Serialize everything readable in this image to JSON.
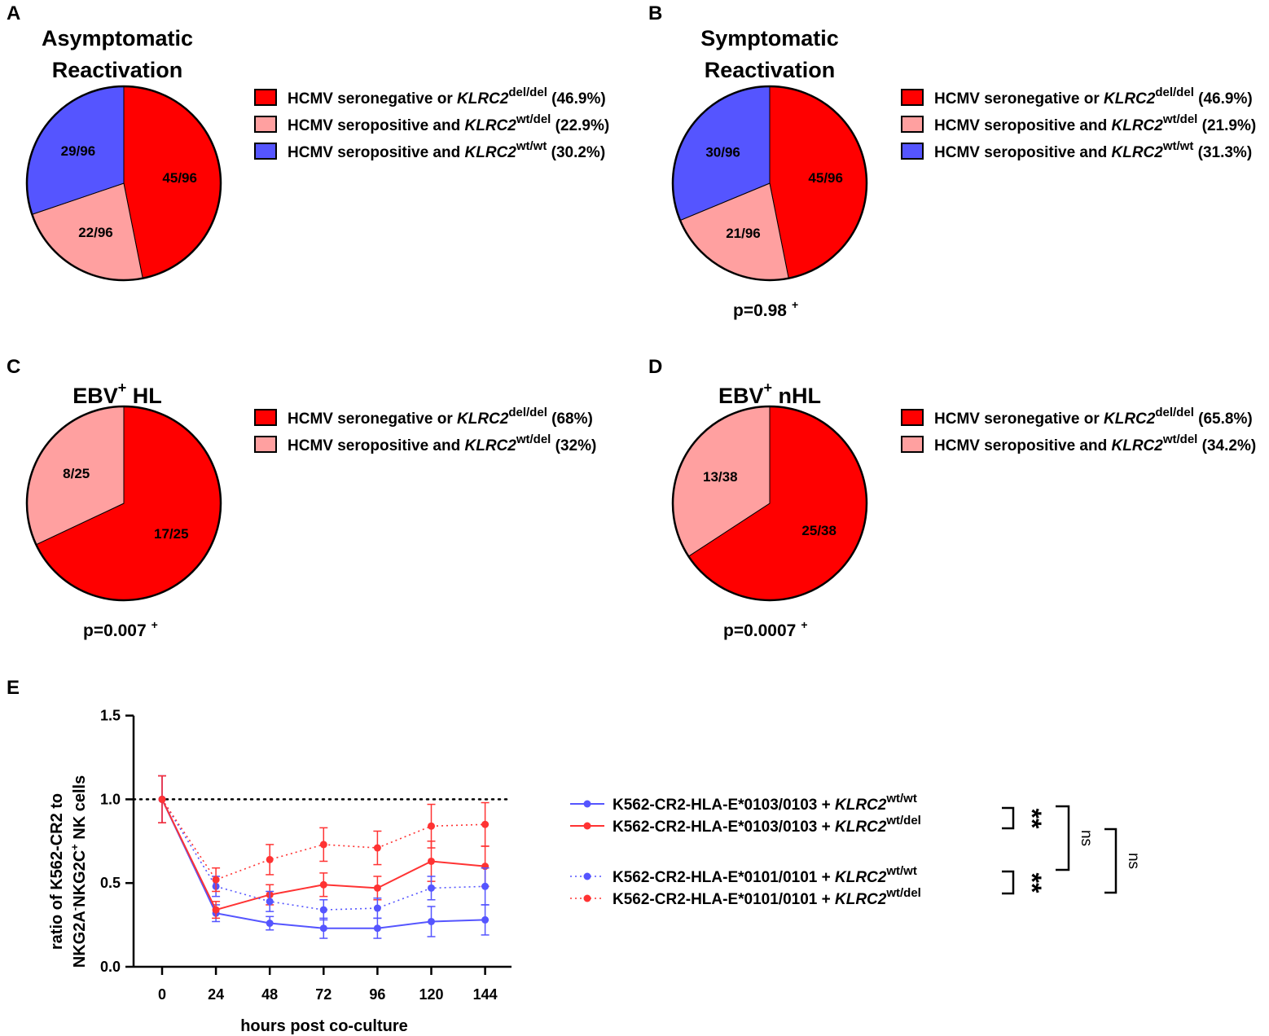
{
  "chart_data": [
    {
      "type": "pie",
      "panel_label": "A",
      "title": [
        "Asymptomatic",
        "Reactivation"
      ],
      "slices": [
        {
          "label": "45/96",
          "value": 45,
          "color": "#ff0000"
        },
        {
          "label": "22/96",
          "value": 22,
          "color": "#ffa0a0"
        },
        {
          "label": "29/96",
          "value": 29,
          "color": "#5555ff"
        }
      ],
      "legend": [
        {
          "pre": "HCMV seronegative  or ",
          "gene": "KLRC2",
          "sup": "del/del",
          "post": " (46.9%)",
          "color": "#ff0000"
        },
        {
          "pre": "HCMV seropositive and ",
          "gene": "KLRC2",
          "sup": "wt/del",
          "post": " (22.9%)",
          "color": "#ffa0a0"
        },
        {
          "pre": "HCMV seropositive and ",
          "gene": "KLRC2",
          "sup": "wt/wt",
          "post": " (30.2%)",
          "color": "#5555ff"
        }
      ],
      "p_value": "",
      "p_sup": ""
    },
    {
      "type": "pie",
      "panel_label": "B",
      "title": [
        "Symptomatic",
        "Reactivation"
      ],
      "slices": [
        {
          "label": "45/96",
          "value": 45,
          "color": "#ff0000"
        },
        {
          "label": "21/96",
          "value": 21,
          "color": "#ffa0a0"
        },
        {
          "label": "30/96",
          "value": 30,
          "color": "#5555ff"
        }
      ],
      "legend": [
        {
          "pre": "HCMV seronegative  or ",
          "gene": "KLRC2",
          "sup": "del/del",
          "post": " (46.9%)",
          "color": "#ff0000"
        },
        {
          "pre": "HCMV seropositive and ",
          "gene": "KLRC2",
          "sup": "wt/del",
          "post": " (21.9%)",
          "color": "#ffa0a0"
        },
        {
          "pre": "HCMV seropositive and ",
          "gene": "KLRC2",
          "sup": "wt/wt",
          "post": " (31.3%)",
          "color": "#5555ff"
        }
      ],
      "p_value": "p=0.98",
      "p_sup": "+"
    },
    {
      "type": "pie",
      "panel_label": "C",
      "title": [
        "EBV",
        "+",
        " HL"
      ],
      "slices": [
        {
          "label": "17/25",
          "value": 17,
          "color": "#ff0000"
        },
        {
          "label": "8/25",
          "value": 8,
          "color": "#ffa0a0"
        }
      ],
      "legend": [
        {
          "pre": "HCMV seronegative  or ",
          "gene": "KLRC2",
          "sup": "del/del",
          "post": " (68%)",
          "color": "#ff0000"
        },
        {
          "pre": "HCMV seropositive and ",
          "gene": "KLRC2",
          "sup": "wt/del",
          "post": " (32%)",
          "color": "#ffa0a0"
        }
      ],
      "p_value": "p=0.007",
      "p_sup": "+"
    },
    {
      "type": "pie",
      "panel_label": "D",
      "title": [
        "EBV",
        "+",
        " nHL"
      ],
      "slices": [
        {
          "label": "25/38",
          "value": 25,
          "color": "#ff0000"
        },
        {
          "label": "13/38",
          "value": 13,
          "color": "#ffa0a0"
        }
      ],
      "legend": [
        {
          "pre": "HCMV seronegative  or ",
          "gene": "KLRC2",
          "sup": "del/del",
          "post": " (65.8%)",
          "color": "#ff0000"
        },
        {
          "pre": "HCMV seropositive and ",
          "gene": "KLRC2",
          "sup": "wt/del",
          "post": " (34.2%)",
          "color": "#ffa0a0"
        }
      ],
      "p_value": "p=0.0007",
      "p_sup": "+"
    },
    {
      "type": "line",
      "panel_label": "E",
      "xlabel": "hours post co-culture",
      "ylabel_line1": "ratio of K562-CR2 to",
      "ylabel_line2": {
        "a": "NKG2A",
        "a_sup": "-",
        "b": "NKG2C",
        "b_sup": "+",
        "c": " NK cells"
      },
      "x": [
        0,
        24,
        48,
        72,
        96,
        120,
        144
      ],
      "x_ticks": [
        "0",
        "24",
        "48",
        "72",
        "96",
        "120",
        "144"
      ],
      "ylim": [
        0,
        1.5
      ],
      "y_ticks": [
        "0.0",
        "0.5",
        "1.0",
        "1.5"
      ],
      "reference_line": 1.0,
      "series": [
        {
          "name": "K562-CR2-HLA-E*0103/0103 + ",
          "gene": "KLRC2",
          "sup": "wt/wt",
          "color": "#5555ff",
          "dashed": false,
          "values": [
            1.0,
            0.32,
            0.26,
            0.23,
            0.23,
            0.27,
            0.28
          ],
          "errors": [
            0.14,
            0.05,
            0.04,
            0.06,
            0.06,
            0.09,
            0.09
          ]
        },
        {
          "name": "K562-CR2-HLA-E*0103/0103 + ",
          "gene": "KLRC2",
          "sup": "wt/del",
          "color": "#ff3333",
          "dashed": false,
          "values": [
            1.0,
            0.34,
            0.43,
            0.49,
            0.47,
            0.63,
            0.6
          ],
          "errors": [
            0.14,
            0.05,
            0.06,
            0.07,
            0.07,
            0.12,
            0.12
          ]
        },
        {
          "name": "K562-CR2-HLA-E*0101/0101 + ",
          "gene": "KLRC2",
          "sup": "wt/wt",
          "color": "#5555ff",
          "dashed": true,
          "values": [
            1.0,
            0.48,
            0.39,
            0.34,
            0.35,
            0.47,
            0.48
          ],
          "errors": [
            0.14,
            0.06,
            0.06,
            0.06,
            0.06,
            0.07,
            0.11
          ]
        },
        {
          "name": "K562-CR2-HLA-E*0101/0101 + ",
          "gene": "KLRC2",
          "sup": "wt/del",
          "color": "#ff3333",
          "dashed": true,
          "values": [
            1.0,
            0.52,
            0.64,
            0.73,
            0.71,
            0.84,
            0.85
          ],
          "errors": [
            0.14,
            0.07,
            0.09,
            0.1,
            0.1,
            0.13,
            0.13
          ]
        }
      ],
      "significance": [
        "**",
        "**",
        "ns",
        "ns"
      ]
    }
  ]
}
